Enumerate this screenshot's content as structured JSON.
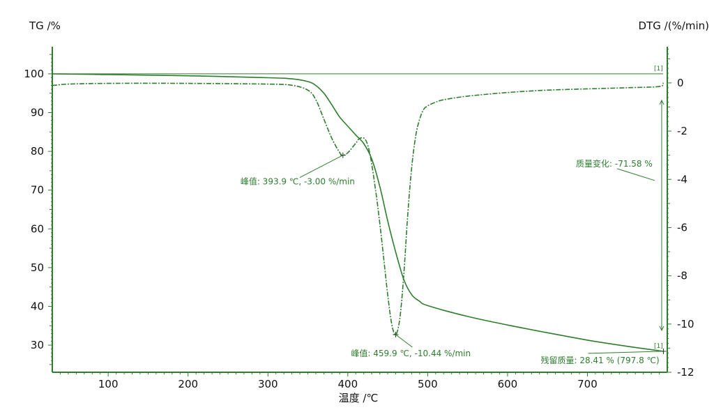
{
  "chart_data": {
    "type": "line",
    "title": "",
    "xlabel": "温度 /℃",
    "ylabel_left": "TG /%",
    "ylabel_right": "DTG /(%/min)",
    "xlim": [
      30,
      800
    ],
    "ylim_left": [
      23,
      107
    ],
    "ylim_right": [
      -12,
      1.5
    ],
    "x_ticks": [
      100,
      200,
      300,
      400,
      500,
      600,
      700
    ],
    "y_ticks_left": [
      30,
      40,
      50,
      60,
      70,
      80,
      90,
      100
    ],
    "y_ticks_right": [
      -12,
      -10,
      -8,
      -6,
      -4,
      -2,
      0
    ],
    "y_tick_labels_right": [
      "-12",
      "-10",
      "-8",
      "-6",
      "-4",
      "-2",
      "0"
    ],
    "grid": false,
    "colors": {
      "series": "#2d7d2d",
      "axis": "#2d7d2d",
      "text": "#111111"
    },
    "series": [
      {
        "axis": "left",
        "style": "solid",
        "x": [
          30,
          100,
          200,
          300,
          330,
          350,
          360,
          370,
          380,
          390,
          400,
          410,
          420,
          430,
          440,
          450,
          460,
          470,
          480,
          490,
          500,
          550,
          600,
          650,
          700,
          750,
          795
        ],
        "values": [
          100,
          99.8,
          99.5,
          99.0,
          98.7,
          98.0,
          97.0,
          95.0,
          92.0,
          88.8,
          86.5,
          84.2,
          82.0,
          78.0,
          71.0,
          62.0,
          54.0,
          47.0,
          43.0,
          41.3,
          40.2,
          37.4,
          35.2,
          33.2,
          31.3,
          29.7,
          28.41
        ]
      },
      {
        "axis": "right",
        "style": "dashdot",
        "x": [
          30,
          33,
          50,
          100,
          200,
          300,
          330,
          350,
          360,
          370,
          380,
          390,
          393.9,
          400,
          410,
          415,
          422,
          428,
          435,
          440,
          445,
          450,
          455,
          459.9,
          465,
          470,
          475,
          480,
          485,
          490,
          495,
          500,
          510,
          520,
          550,
          600,
          650,
          700,
          750,
          790,
          795
        ],
        "values": [
          -0.1,
          -0.1,
          -0.05,
          -0.02,
          -0.02,
          -0.05,
          -0.1,
          -0.3,
          -0.7,
          -1.5,
          -2.3,
          -2.9,
          -3.0,
          -2.9,
          -2.5,
          -2.3,
          -2.35,
          -3.0,
          -4.5,
          -5.8,
          -7.3,
          -8.8,
          -10.0,
          -10.44,
          -9.8,
          -8.0,
          -5.5,
          -3.5,
          -2.2,
          -1.5,
          -1.1,
          -0.95,
          -0.8,
          -0.7,
          -0.55,
          -0.4,
          -0.3,
          -0.25,
          -0.2,
          -0.15,
          0.0
        ]
      }
    ],
    "reference_line_left": 100,
    "step_marks": [
      "[1]",
      "[1]"
    ],
    "annotations": {
      "peak1": {
        "label": "峰值: 393.9 ℃, -3.00 %/min",
        "x": 393.9,
        "y": -3.0,
        "axis": "right"
      },
      "peak2": {
        "label": "峰值: 459.9 ℃, -10.44 %/min",
        "x": 459.9,
        "y": -10.44,
        "axis": "right"
      },
      "mass_change": {
        "label": "质量变化: -71.58 %",
        "from_left": 100,
        "to_left": 28.41
      },
      "residual": {
        "label": "残留质量: 28.41 % (797.8 ℃)",
        "x": 797.8,
        "y": 28.41,
        "axis": "left"
      }
    }
  }
}
